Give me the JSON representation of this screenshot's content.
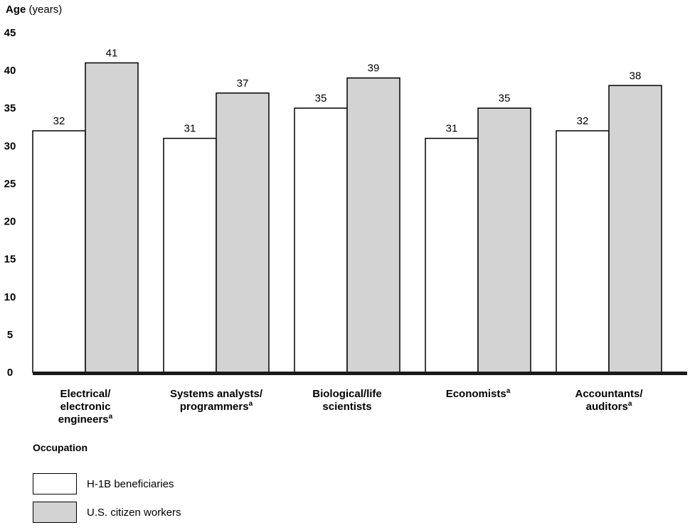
{
  "chart_data": {
    "type": "bar",
    "ylabel_bold": "Age",
    "ylabel_unit": "(years)",
    "xlabel": "Occupation",
    "ylim": [
      0,
      45
    ],
    "yticks": [
      "0",
      "5",
      "10",
      "15",
      "20",
      "25",
      "30",
      "35",
      "40",
      "45"
    ],
    "categories": [
      {
        "lines": [
          "Electrical/",
          "electronic",
          "engineers"
        ],
        "footnote": "a"
      },
      {
        "lines": [
          "Systems analysts/",
          "programmers"
        ],
        "footnote": "a"
      },
      {
        "lines": [
          "Biological/life",
          "scientists"
        ],
        "footnote": ""
      },
      {
        "lines": [
          "Economists"
        ],
        "footnote": "a"
      },
      {
        "lines": [
          "Accountants/",
          "auditors"
        ],
        "footnote": "a"
      }
    ],
    "series": [
      {
        "name": "H-1B beneficiaries",
        "color": "#ffffff",
        "values": [
          32,
          31,
          35,
          31,
          32
        ]
      },
      {
        "name": "U.S. citizen workers",
        "color": "#d3d3d3",
        "values": [
          41,
          37,
          39,
          35,
          38
        ]
      }
    ],
    "legend": "bottom-left",
    "grid": false
  }
}
